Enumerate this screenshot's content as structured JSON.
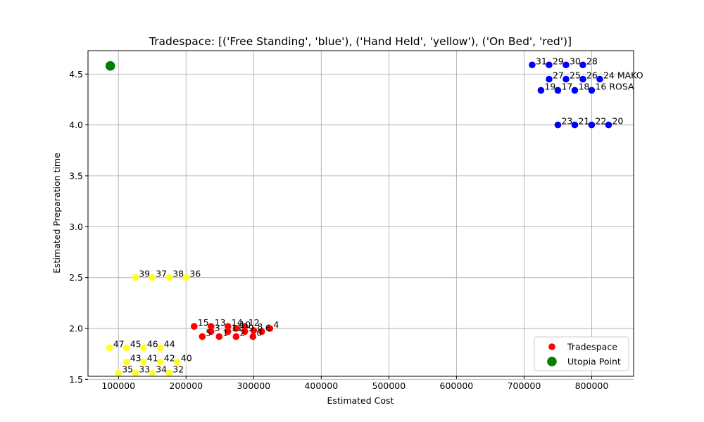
{
  "chart_data": {
    "type": "scatter",
    "title": "Tradespace: [('Free Standing', 'blue'), ('Hand Held', 'yellow'), ('On Bed', 'red')]",
    "xlabel": "Estimated Cost",
    "ylabel": "Estimated Preparation time",
    "xlim": [
      55000,
      862000
    ],
    "ylim": [
      1.53,
      4.73
    ],
    "xticks": [
      100000,
      200000,
      300000,
      400000,
      500000,
      600000,
      700000,
      800000
    ],
    "yticks": [
      1.5,
      2.0,
      2.5,
      3.0,
      3.5,
      4.0,
      4.5
    ],
    "grid": true,
    "legend": {
      "placement": "lower-right",
      "entries": [
        {
          "label": "Tradespace",
          "color": "#ff0000",
          "marker": "dot"
        },
        {
          "label": "Utopia Point",
          "color": "#008000",
          "marker": "big-dot"
        }
      ]
    },
    "colors": {
      "free_standing": "#0000ff",
      "hand_held": "#ffff22",
      "on_bed": "#ff0000",
      "utopia": "#008000"
    },
    "utopia_point": {
      "x": 88000,
      "y": 4.58
    },
    "series": [
      {
        "color": "#0000ff",
        "points": [
          {
            "x": 712000,
            "y": 4.59,
            "label": "31"
          },
          {
            "x": 737000,
            "y": 4.59,
            "label": "29"
          },
          {
            "x": 762000,
            "y": 4.59,
            "label": "30"
          },
          {
            "x": 787000,
            "y": 4.59,
            "label": "28"
          },
          {
            "x": 737000,
            "y": 4.45,
            "label": "27"
          },
          {
            "x": 762000,
            "y": 4.45,
            "label": "25"
          },
          {
            "x": 787000,
            "y": 4.45,
            "label": "26"
          },
          {
            "x": 812000,
            "y": 4.45,
            "label": "24  MAKO"
          },
          {
            "x": 725000,
            "y": 4.34,
            "label": "19"
          },
          {
            "x": 750000,
            "y": 4.34,
            "label": "17"
          },
          {
            "x": 775000,
            "y": 4.34,
            "label": "18"
          },
          {
            "x": 800000,
            "y": 4.34,
            "label": "16  ROSA"
          },
          {
            "x": 750000,
            "y": 4.0,
            "label": "23"
          },
          {
            "x": 775000,
            "y": 4.0,
            "label": "21"
          },
          {
            "x": 800000,
            "y": 4.0,
            "label": "22"
          },
          {
            "x": 825000,
            "y": 4.0,
            "label": "20"
          }
        ]
      },
      {
        "color": "#ffff22",
        "points": [
          {
            "x": 125000,
            "y": 2.5,
            "label": "39"
          },
          {
            "x": 150000,
            "y": 2.5,
            "label": "37"
          },
          {
            "x": 175000,
            "y": 2.5,
            "label": "38"
          },
          {
            "x": 200000,
            "y": 2.5,
            "label": "36"
          },
          {
            "x": 87000,
            "y": 1.81,
            "label": "47"
          },
          {
            "x": 112000,
            "y": 1.81,
            "label": "45"
          },
          {
            "x": 137000,
            "y": 1.81,
            "label": "46"
          },
          {
            "x": 162000,
            "y": 1.81,
            "label": "44"
          },
          {
            "x": 112000,
            "y": 1.67,
            "label": "43"
          },
          {
            "x": 137000,
            "y": 1.67,
            "label": "41"
          },
          {
            "x": 162000,
            "y": 1.67,
            "label": "42"
          },
          {
            "x": 187000,
            "y": 1.67,
            "label": "40"
          },
          {
            "x": 100000,
            "y": 1.56,
            "label": "35"
          },
          {
            "x": 125000,
            "y": 1.56,
            "label": "33"
          },
          {
            "x": 150000,
            "y": 1.56,
            "label": "34"
          },
          {
            "x": 175000,
            "y": 1.56,
            "label": "32"
          }
        ]
      },
      {
        "color": "#ff0000",
        "points": [
          {
            "x": 212000,
            "y": 2.02,
            "label": "15"
          },
          {
            "x": 237000,
            "y": 2.02,
            "label": "13"
          },
          {
            "x": 262000,
            "y": 2.02,
            "label": "14"
          },
          {
            "x": 287000,
            "y": 2.02,
            "label": "12"
          },
          {
            "x": 274000,
            "y": 2.0,
            "label": "10"
          },
          {
            "x": 324000,
            "y": 2.0,
            "label": "4"
          },
          {
            "x": 237000,
            "y": 1.97,
            "label": "3"
          },
          {
            "x": 262000,
            "y": 1.97,
            "label": "11"
          },
          {
            "x": 287000,
            "y": 1.97,
            "label": "9"
          },
          {
            "x": 312000,
            "y": 1.97,
            "label": "6"
          },
          {
            "x": 300000,
            "y": 1.98,
            "label": "8"
          },
          {
            "x": 224000,
            "y": 1.92,
            "label": "5"
          },
          {
            "x": 249000,
            "y": 1.92,
            "label": "1"
          },
          {
            "x": 274000,
            "y": 1.92,
            "label": "2"
          },
          {
            "x": 299000,
            "y": 1.92,
            "label": "0"
          }
        ]
      }
    ]
  }
}
